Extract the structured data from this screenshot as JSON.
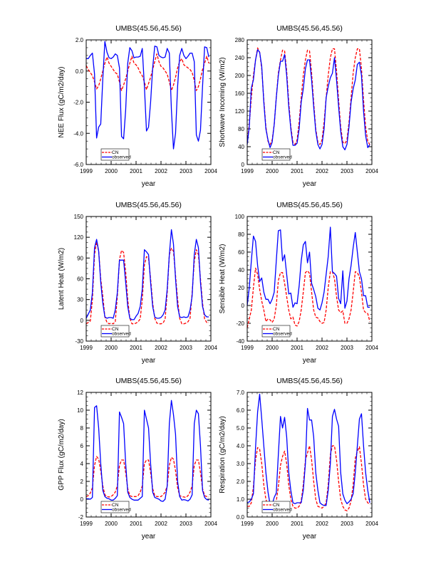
{
  "chart_data": [
    {
      "type": "line",
      "title": "UMBS(45.56,45.56)",
      "xlabel": "year",
      "ylabel": "NEE Flux (gC/m2/day)",
      "xlim": [
        1999,
        2004
      ],
      "xticks": [
        "1999",
        "2000",
        "2001",
        "2002",
        "2003",
        "2004"
      ],
      "ylim": [
        -6,
        2
      ],
      "yticks": [
        -6,
        -4,
        -2,
        0,
        2
      ],
      "ytick_labels": [
        "-6.0",
        "-4.0",
        "-2.0",
        "0.0",
        "2.0"
      ],
      "x_start": 1999,
      "x_step": 0.08333,
      "legend": {
        "placement": "bottom-left",
        "entries": [
          "CN",
          "observed"
        ]
      },
      "series": [
        {
          "name": "CN",
          "color": "#ff0000",
          "dash": true,
          "values": [
            0.35,
            0.1,
            -0.1,
            -0.3,
            -0.7,
            -1.15,
            -0.95,
            -0.5,
            0.0,
            0.5,
            0.9,
            0.5,
            0.3,
            0.1,
            -0.1,
            -0.2,
            -0.7,
            -1.25,
            -0.9,
            -0.5,
            0.0,
            0.5,
            0.95,
            0.5,
            0.4,
            0.2,
            -0.1,
            -0.3,
            -0.7,
            -1.2,
            -0.8,
            -0.4,
            0.1,
            0.6,
            1.1,
            0.6,
            0.3,
            0.2,
            0.0,
            -0.2,
            -0.7,
            -1.25,
            -0.9,
            -0.4,
            0.2,
            0.6,
            0.8,
            0.4,
            0.3,
            0.2,
            0.1,
            -0.1,
            -0.6,
            -1.25,
            -1.0,
            -0.5,
            0.1,
            0.5,
            0.95,
            0.5
          ]
        },
        {
          "name": "observed",
          "color": "#0000ff",
          "dash": false,
          "values": [
            0.8,
            0.8,
            1.0,
            1.15,
            -0.2,
            -4.3,
            -3.6,
            -3.4,
            -0.5,
            1.9,
            1.2,
            0.85,
            0.8,
            0.9,
            1.1,
            1.0,
            0.2,
            -4.2,
            -4.35,
            -2.5,
            0.5,
            1.5,
            1.3,
            0.85,
            0.9,
            0.9,
            0.95,
            1.45,
            -1.0,
            -3.85,
            -3.6,
            -2.0,
            0.2,
            1.6,
            1.55,
            1.0,
            0.9,
            0.85,
            0.9,
            1.45,
            1.15,
            -2.5,
            -5.0,
            -4.0,
            -1.0,
            1.0,
            1.45,
            1.0,
            0.8,
            0.95,
            1.15,
            1.15,
            0.6,
            -4.1,
            -4.5,
            -3.8,
            -1.0,
            1.55,
            1.5,
            0.9
          ]
        }
      ]
    },
    {
      "type": "line",
      "title": "UMBS(45.56,45.56)",
      "xlabel": "year",
      "ylabel": "Shortwave Incoming (W/m2)",
      "xlim": [
        1999,
        2004
      ],
      "xticks": [
        "1999",
        "2000",
        "2001",
        "2002",
        "2003",
        "2004"
      ],
      "ylim": [
        0,
        280
      ],
      "yticks": [
        0,
        40,
        80,
        120,
        160,
        200,
        240,
        280
      ],
      "ytick_labels": [
        "0",
        "40",
        "80",
        "120",
        "160",
        "200",
        "240",
        "280"
      ],
      "x_start": 1999,
      "x_step": 0.08333,
      "legend": {
        "placement": "bottom-left",
        "entries": [
          "CN",
          "observed"
        ]
      },
      "series": [
        {
          "name": "CN",
          "color": "#ff0000",
          "dash": true,
          "values": [
            50,
            90,
            150,
            200,
            235,
            262,
            252,
            215,
            145,
            85,
            52,
            45,
            55,
            90,
            150,
            205,
            235,
            257,
            255,
            210,
            140,
            85,
            50,
            45,
            55,
            95,
            150,
            200,
            235,
            257,
            255,
            205,
            140,
            80,
            50,
            45,
            55,
            95,
            150,
            200,
            240,
            260,
            260,
            210,
            145,
            85,
            50,
            47,
            55,
            95,
            150,
            205,
            240,
            260,
            260,
            215,
            145,
            85,
            52,
            45
          ]
        },
        {
          "name": "observed",
          "color": "#0000ff",
          "dash": false,
          "values": [
            45,
            85,
            172,
            190,
            235,
            258,
            252,
            220,
            140,
            80,
            55,
            38,
            50,
            90,
            150,
            200,
            232,
            232,
            247,
            200,
            130,
            80,
            43,
            43,
            48,
            80,
            140,
            170,
            215,
            235,
            235,
            190,
            130,
            75,
            45,
            35,
            45,
            80,
            150,
            175,
            195,
            205,
            240,
            190,
            130,
            75,
            40,
            33,
            45,
            85,
            140,
            170,
            190,
            225,
            230,
            200,
            120,
            65,
            38,
            45
          ]
        }
      ]
    },
    {
      "type": "line",
      "title": "UMBS(45.56,45.56)",
      "xlabel": "year",
      "ylabel": "Latent Heat (W/m2)",
      "xlim": [
        1999,
        2004
      ],
      "xticks": [
        "1999",
        "2000",
        "2001",
        "2002",
        "2003",
        "2004"
      ],
      "ylim": [
        -30,
        150
      ],
      "yticks": [
        -30,
        0,
        30,
        60,
        90,
        120,
        150
      ],
      "ytick_labels": [
        "-30",
        "0",
        "30",
        "60",
        "90",
        "120",
        "150"
      ],
      "x_start": 1999,
      "x_step": 0.08333,
      "legend": {
        "placement": "bottom-left",
        "entries": [
          "CN",
          "observed"
        ]
      },
      "series": [
        {
          "name": "CN",
          "color": "#ff0000",
          "dash": true,
          "values": [
            -5,
            -3,
            -1,
            30,
            95,
            113,
            100,
            60,
            35,
            5,
            -3,
            -5,
            -4,
            -5,
            -2,
            35,
            88,
            101,
            98,
            70,
            30,
            3,
            -5,
            -5,
            -4,
            -2,
            2,
            30,
            80,
            92,
            90,
            60,
            25,
            3,
            -4,
            -5,
            -5,
            -4,
            2,
            40,
            95,
            104,
            100,
            65,
            30,
            3,
            -5,
            -5,
            -4,
            -2,
            3,
            40,
            85,
            102,
            95,
            60,
            25,
            2,
            -3,
            -3
          ]
        },
        {
          "name": "observed",
          "color": "#0000ff",
          "dash": false,
          "values": [
            3,
            9,
            15,
            40,
            105,
            117,
            100,
            55,
            25,
            5,
            3,
            4,
            4,
            3,
            15,
            40,
            87,
            87,
            87,
            55,
            20,
            3,
            1,
            1,
            6,
            10,
            20,
            45,
            102,
            99,
            95,
            55,
            20,
            5,
            3,
            3,
            4,
            8,
            15,
            45,
            95,
            131,
            110,
            60,
            20,
            5,
            4,
            5,
            4,
            5,
            15,
            35,
            95,
            117,
            105,
            55,
            20,
            8,
            5,
            5
          ]
        }
      ]
    },
    {
      "type": "line",
      "title": "UMBS(45.56,45.56)",
      "xlabel": "year",
      "ylabel": "Sensible Heat (W/m2)",
      "xlim": [
        1999,
        2004
      ],
      "xticks": [
        "1999",
        "2000",
        "2001",
        "2002",
        "2003",
        "2004"
      ],
      "ylim": [
        -40,
        100
      ],
      "yticks": [
        -40,
        -20,
        0,
        20,
        40,
        60,
        80,
        100
      ],
      "ytick_labels": [
        "-40",
        "-20",
        "0",
        "20",
        "40",
        "60",
        "80",
        "100"
      ],
      "x_start": 1999,
      "x_step": 0.08333,
      "legend": {
        "placement": "bottom-left",
        "entries": [
          "CN",
          "observed"
        ]
      },
      "series": [
        {
          "name": "CN",
          "color": "#ff0000",
          "dash": true,
          "values": [
            -25,
            -15,
            -5,
            20,
            42,
            35,
            18,
            5,
            -5,
            -18,
            -15,
            -16,
            -19,
            -15,
            0,
            28,
            37,
            37,
            25,
            10,
            -5,
            -15,
            -13,
            -22,
            -23,
            -18,
            -5,
            15,
            37,
            39,
            36,
            15,
            -5,
            -13,
            -14,
            -18,
            -20,
            -19,
            -5,
            20,
            38,
            38,
            30,
            10,
            -5,
            -8,
            -6,
            -20,
            -20,
            -15,
            -5,
            15,
            38,
            37,
            32,
            15,
            -5,
            -8,
            -9,
            -18
          ]
        },
        {
          "name": "observed",
          "color": "#0000ff",
          "dash": false,
          "values": [
            0,
            20,
            50,
            78,
            72,
            45,
            27,
            31,
            15,
            7,
            7,
            2,
            7,
            15,
            50,
            84,
            85,
            50,
            57,
            35,
            13,
            14,
            -2,
            3,
            2,
            22,
            50,
            68,
            72,
            48,
            60,
            25,
            18,
            10,
            -3,
            -5,
            3,
            15,
            35,
            55,
            88,
            38,
            36,
            33,
            8,
            2,
            39,
            -3,
            5,
            30,
            45,
            65,
            82,
            60,
            38,
            30,
            11,
            11,
            -2,
            -2
          ]
        }
      ]
    },
    {
      "type": "line",
      "title": "UMBS(45.56,45.56)",
      "xlabel": "year",
      "ylabel": "GPP Flux (gC/m2/day)",
      "xlim": [
        1999,
        2004
      ],
      "xticks": [
        "1999",
        "2000",
        "2001",
        "2002",
        "2003",
        "2004"
      ],
      "ylim": [
        -2,
        12
      ],
      "yticks": [
        -2,
        0,
        2,
        4,
        6,
        8,
        10,
        12
      ],
      "ytick_labels": [
        "-2",
        "0",
        "2",
        "4",
        "6",
        "8",
        "10",
        "12"
      ],
      "x_start": 1999,
      "x_step": 0.08333,
      "legend": {
        "placement": "bottom-left",
        "entries": [
          "CN",
          "observed"
        ]
      },
      "series": [
        {
          "name": "CN",
          "color": "#ff0000",
          "dash": true,
          "values": [
            0.3,
            0.4,
            0.7,
            1.3,
            3.8,
            4.8,
            4.5,
            3.2,
            1.5,
            0.5,
            0.3,
            0.25,
            0.3,
            0.5,
            0.8,
            1.5,
            3.8,
            4.4,
            4.4,
            3.0,
            1.2,
            0.4,
            0.3,
            0.3,
            0.3,
            0.4,
            0.8,
            1.5,
            4.0,
            4.4,
            4.4,
            3.0,
            1.2,
            0.4,
            0.3,
            0.3,
            0.3,
            0.5,
            0.8,
            1.5,
            3.8,
            4.7,
            4.5,
            3.2,
            1.3,
            0.4,
            0.3,
            0.25,
            0.2,
            0.4,
            0.8,
            1.5,
            3.8,
            4.4,
            4.4,
            3.0,
            1.2,
            0.4,
            0.3,
            0.25
          ]
        },
        {
          "name": "observed",
          "color": "#0000ff",
          "dash": false,
          "values": [
            0.05,
            0.05,
            0.0,
            0.2,
            10.3,
            10.5,
            8.0,
            4.0,
            1.0,
            0.3,
            0.1,
            0.05,
            -0.1,
            -0.1,
            0.1,
            0.4,
            9.8,
            9.2,
            8.5,
            4.0,
            0.8,
            0.2,
            0.0,
            -0.1,
            -0.1,
            -0.1,
            0.1,
            0.3,
            10.0,
            9.0,
            8.0,
            4.0,
            0.8,
            0.2,
            0.1,
            0.0,
            -0.2,
            -0.25,
            0.0,
            1.5,
            8.5,
            11.1,
            9.5,
            7.3,
            2.0,
            0.3,
            -0.1,
            -0.05,
            -0.1,
            -0.2,
            0.0,
            0.5,
            8.5,
            10.0,
            9.6,
            6.0,
            1.0,
            0.2,
            -0.05,
            -0.1
          ]
        }
      ]
    },
    {
      "type": "line",
      "title": "UMBS(45.56,45.56)",
      "xlabel": "year",
      "ylabel": "Respiration (gC/m2/day)",
      "xlim": [
        1999,
        2004
      ],
      "xticks": [
        "1999",
        "2000",
        "2001",
        "2002",
        "2003",
        "2004"
      ],
      "ylim": [
        0,
        7
      ],
      "yticks": [
        0,
        1,
        2,
        3,
        4,
        5,
        6,
        7
      ],
      "ytick_labels": [
        "0.0",
        "1.0",
        "2.0",
        "3.0",
        "4.0",
        "5.0",
        "6.0",
        "7.0"
      ],
      "x_start": 1999,
      "x_step": 0.08333,
      "legend": {
        "placement": "bottom-left",
        "entries": [
          "CN",
          "observed"
        ]
      },
      "series": [
        {
          "name": "CN",
          "color": "#ff0000",
          "dash": true,
          "values": [
            0.6,
            0.6,
            0.8,
            1.7,
            3.2,
            3.9,
            3.8,
            3.0,
            1.8,
            1.0,
            0.6,
            0.5,
            0.5,
            0.6,
            0.9,
            1.7,
            2.9,
            3.4,
            3.7,
            3.0,
            1.8,
            1.0,
            0.6,
            0.5,
            0.5,
            0.6,
            0.9,
            1.8,
            3.2,
            3.6,
            4.0,
            3.2,
            2.0,
            1.0,
            0.6,
            0.55,
            0.5,
            0.6,
            0.8,
            1.8,
            3.5,
            4.0,
            4.0,
            3.2,
            2.0,
            1.0,
            0.6,
            0.4,
            0.35,
            0.5,
            0.9,
            1.8,
            3.3,
            3.7,
            3.95,
            3.0,
            1.8,
            1.0,
            0.8,
            0.7
          ]
        },
        {
          "name": "observed",
          "color": "#0000ff",
          "dash": false,
          "values": [
            0.8,
            0.85,
            1.0,
            1.3,
            3.9,
            5.9,
            6.9,
            5.5,
            4.0,
            2.5,
            1.4,
            0.7,
            0.7,
            1.1,
            1.35,
            3.5,
            5.65,
            5.0,
            5.6,
            4.5,
            2.5,
            1.5,
            0.8,
            0.75,
            0.8,
            0.8,
            0.8,
            1.5,
            3.0,
            6.1,
            5.45,
            5.45,
            4.5,
            2.5,
            1.5,
            0.8,
            0.7,
            0.65,
            0.65,
            1.5,
            3.0,
            5.65,
            6.05,
            5.5,
            5.1,
            2.5,
            1.3,
            0.95,
            0.75,
            0.85,
            1.0,
            1.3,
            2.5,
            4.0,
            5.5,
            5.8,
            4.0,
            2.5,
            1.5,
            0.8
          ]
        }
      ]
    }
  ]
}
